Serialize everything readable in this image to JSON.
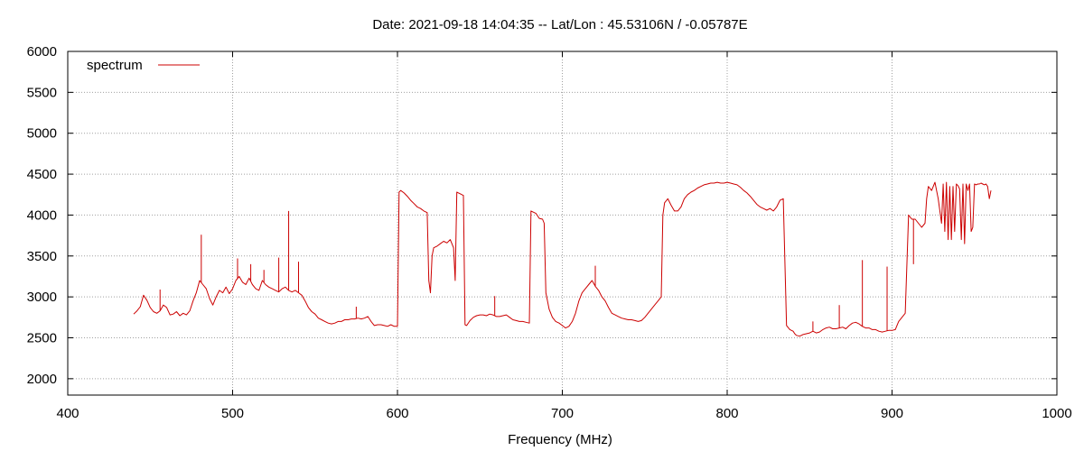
{
  "chart_data": {
    "type": "line",
    "title": "Date: 2021-09-18 14:04:35  --  Lat/Lon : 45.53106N / -0.05787E",
    "xlabel": "Frequency (MHz)",
    "ylabel": "",
    "xlim": [
      400,
      1000
    ],
    "ylim": [
      1800,
      6000
    ],
    "xticks": [
      400,
      500,
      600,
      700,
      800,
      900,
      1000
    ],
    "yticks": [
      2000,
      2500,
      3000,
      3500,
      4000,
      4500,
      5000,
      5500,
      6000
    ],
    "grid": true,
    "legend_position": "top-left",
    "series": [
      {
        "name": "spectrum",
        "color": "#cc0000",
        "x": [
          440,
          442,
          444,
          446,
          448,
          450,
          452,
          454,
          456,
          458,
          460,
          462,
          464,
          466,
          468,
          470,
          472,
          474,
          476,
          478,
          480,
          482,
          484,
          486,
          488,
          490,
          492,
          494,
          496,
          498,
          500,
          502,
          504,
          506,
          508,
          510,
          512,
          514,
          516,
          518,
          520,
          522,
          524,
          526,
          528,
          530,
          532,
          534,
          536,
          538,
          540,
          542,
          544,
          546,
          548,
          550,
          552,
          554,
          556,
          558,
          560,
          562,
          564,
          566,
          568,
          570,
          572,
          574,
          576,
          578,
          580,
          582,
          584,
          586,
          588,
          590,
          592,
          594,
          596,
          598,
          600,
          601,
          602,
          604,
          606,
          608,
          610,
          612,
          614,
          616,
          618,
          619,
          620,
          621,
          622,
          624,
          626,
          628,
          630,
          632,
          634,
          635,
          636,
          637,
          638,
          640,
          641,
          642,
          644,
          646,
          648,
          650,
          652,
          654,
          656,
          658,
          660,
          662,
          664,
          666,
          668,
          670,
          672,
          674,
          676,
          678,
          680,
          681,
          682,
          684,
          686,
          688,
          689,
          690,
          692,
          694,
          696,
          698,
          700,
          702,
          704,
          706,
          708,
          710,
          712,
          714,
          716,
          718,
          720,
          722,
          724,
          726,
          728,
          730,
          732,
          734,
          736,
          738,
          740,
          742,
          744,
          746,
          748,
          750,
          752,
          754,
          756,
          758,
          760,
          761,
          762,
          764,
          766,
          768,
          770,
          772,
          774,
          776,
          778,
          780,
          782,
          784,
          786,
          788,
          790,
          792,
          794,
          796,
          798,
          800,
          802,
          804,
          806,
          808,
          810,
          812,
          814,
          816,
          818,
          820,
          822,
          824,
          826,
          828,
          830,
          832,
          834,
          836,
          838,
          840,
          841,
          842,
          844,
          846,
          848,
          850,
          852,
          854,
          856,
          858,
          860,
          862,
          864,
          866,
          868,
          870,
          872,
          874,
          876,
          878,
          880,
          882,
          884,
          886,
          888,
          890,
          892,
          894,
          896,
          898,
          900,
          902,
          904,
          906,
          908,
          910,
          912,
          914,
          916,
          918,
          920,
          921,
          922,
          924,
          926,
          928,
          930,
          931,
          932,
          933,
          934,
          935,
          936,
          937,
          938,
          939,
          940,
          941,
          942,
          943,
          944,
          945,
          946,
          947,
          948,
          949,
          950,
          951,
          952,
          953,
          954,
          955,
          956,
          957,
          958,
          959,
          960
        ],
        "y": [
          2790,
          2830,
          2880,
          3020,
          2960,
          2870,
          2820,
          2800,
          2830,
          2900,
          2870,
          2780,
          2790,
          2820,
          2770,
          2800,
          2780,
          2830,
          2950,
          3050,
          3200,
          3150,
          3100,
          2980,
          2900,
          3000,
          3080,
          3050,
          3120,
          3040,
          3100,
          3200,
          3250,
          3180,
          3150,
          3230,
          3150,
          3100,
          3080,
          3200,
          3150,
          3120,
          3100,
          3080,
          3060,
          3100,
          3120,
          3080,
          3060,
          3080,
          3050,
          3020,
          2950,
          2870,
          2820,
          2790,
          2740,
          2720,
          2700,
          2680,
          2670,
          2680,
          2700,
          2700,
          2720,
          2720,
          2730,
          2730,
          2740,
          2730,
          2740,
          2760,
          2700,
          2650,
          2660,
          2660,
          2650,
          2640,
          2660,
          2640,
          2640,
          4280,
          4300,
          4270,
          4230,
          4180,
          4140,
          4100,
          4080,
          4050,
          4030,
          3200,
          3050,
          3500,
          3600,
          3620,
          3650,
          3680,
          3660,
          3700,
          3600,
          3200,
          4280,
          4270,
          4260,
          4240,
          2660,
          2650,
          2710,
          2750,
          2770,
          2780,
          2780,
          2770,
          2790,
          2780,
          2760,
          2760,
          2770,
          2780,
          2750,
          2720,
          2710,
          2700,
          2700,
          2690,
          2680,
          4050,
          4040,
          4020,
          3960,
          3950,
          3900,
          3050,
          2850,
          2750,
          2700,
          2680,
          2650,
          2620,
          2640,
          2700,
          2800,
          2950,
          3050,
          3100,
          3150,
          3200,
          3130,
          3080,
          3000,
          2950,
          2870,
          2800,
          2780,
          2760,
          2740,
          2730,
          2720,
          2720,
          2710,
          2700,
          2710,
          2750,
          2800,
          2850,
          2900,
          2950,
          3000,
          4000,
          4150,
          4200,
          4120,
          4050,
          4050,
          4100,
          4200,
          4250,
          4280,
          4300,
          4330,
          4350,
          4370,
          4380,
          4390,
          4390,
          4400,
          4390,
          4390,
          4400,
          4390,
          4380,
          4370,
          4340,
          4300,
          4270,
          4230,
          4180,
          4130,
          4100,
          4080,
          4060,
          4080,
          4050,
          4100,
          4180,
          4200,
          2650,
          2600,
          2580,
          2550,
          2530,
          2520,
          2540,
          2550,
          2560,
          2580,
          2560,
          2570,
          2600,
          2620,
          2630,
          2610,
          2610,
          2620,
          2630,
          2610,
          2650,
          2680,
          2690,
          2670,
          2640,
          2620,
          2620,
          2600,
          2600,
          2580,
          2570,
          2580,
          2590,
          2590,
          2600,
          2700,
          2750,
          2800,
          4000,
          3950,
          3950,
          3900,
          3850,
          3900,
          4200,
          4350,
          4300,
          4400,
          4200,
          3900,
          4380,
          3800,
          4400,
          3700,
          4350,
          3700,
          4350,
          3800,
          4380,
          4360,
          4320,
          3700,
          4380,
          3650,
          4380,
          4300,
          4380,
          3800,
          3850,
          4380,
          4370,
          4380,
          4380,
          4390,
          4380,
          4370,
          4380,
          4350,
          4200,
          4300
        ]
      }
    ],
    "spikes": [
      {
        "x": 456,
        "y": 3090
      },
      {
        "x": 481,
        "y": 3760
      },
      {
        "x": 503,
        "y": 3470
      },
      {
        "x": 511,
        "y": 3400
      },
      {
        "x": 519,
        "y": 3330
      },
      {
        "x": 528,
        "y": 3480
      },
      {
        "x": 534,
        "y": 4050
      },
      {
        "x": 540,
        "y": 3430
      },
      {
        "x": 575,
        "y": 2880
      },
      {
        "x": 659,
        "y": 3010
      },
      {
        "x": 720,
        "y": 3380
      },
      {
        "x": 852,
        "y": 2700
      },
      {
        "x": 868,
        "y": 2900
      },
      {
        "x": 882,
        "y": 3450
      },
      {
        "x": 897,
        "y": 3370
      },
      {
        "x": 913,
        "y": 3400
      }
    ]
  }
}
